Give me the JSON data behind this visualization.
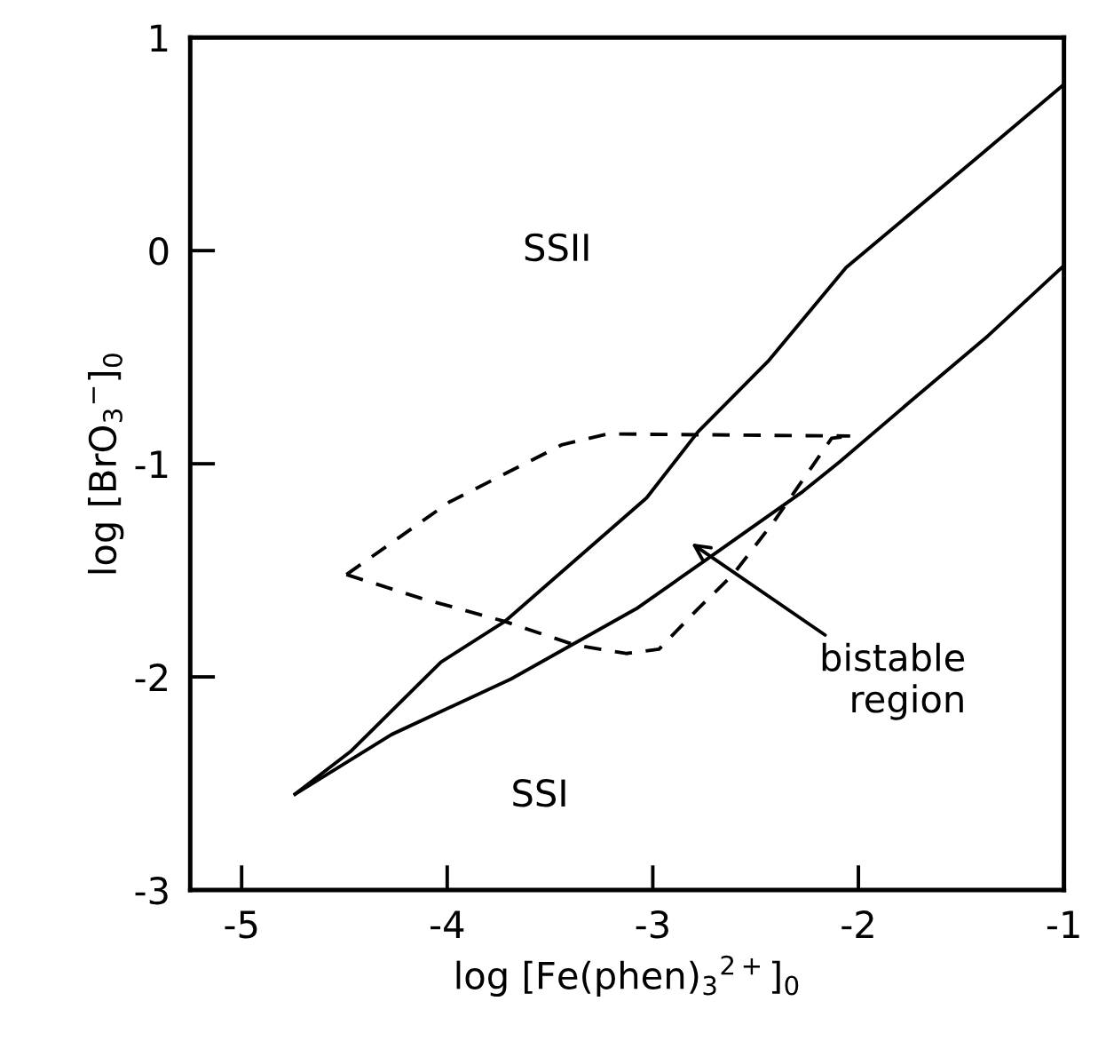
{
  "chart_data": {
    "type": "line",
    "xlabel": "log [Fe(phen)$_{3}$$^{2+}$]$_{0}$",
    "ylabel": "log [BrO$_{3}$$^{−}$]$_{0}$",
    "xlim": [
      -5.25,
      -1
    ],
    "xticks": [
      -5,
      -4,
      -3,
      -2,
      -1
    ],
    "ylim": [
      -3,
      1
    ],
    "yticks": [
      -3,
      -2,
      -1,
      0,
      1
    ],
    "grid": false,
    "legend": false,
    "marker": "none",
    "series": [
      {
        "color": "#000000",
        "line_style": "solid",
        "x": [
          -4.74,
          -4.47,
          -4.03,
          -3.72,
          -3.03,
          -2.78,
          -2.44,
          -2.06,
          -1.43,
          -1
        ],
        "values": [
          -2.55,
          -2.35,
          -1.93,
          -1.74,
          -1.16,
          -0.85,
          -0.52,
          -0.08,
          0.43,
          0.78
        ]
      },
      {
        "color": "#000000",
        "line_style": "solid",
        "x": [
          -4.74,
          -4.27,
          -3.69,
          -3.08,
          -2.74,
          -2.27,
          -2.09,
          -1.75,
          -1.37,
          -1
        ],
        "values": [
          -2.55,
          -2.27,
          -2.01,
          -1.68,
          -1.45,
          -1.13,
          -0.99,
          -0.71,
          -0.4,
          -0.07
        ]
      },
      {
        "color": "#000000",
        "line_style": "dashed",
        "x": [
          -4.49,
          -3.99,
          -3.44,
          -3.22,
          -2.04
        ],
        "values": [
          -1.52,
          -1.18,
          -0.91,
          -0.86,
          -0.87
        ]
      },
      {
        "color": "#000000",
        "line_style": "dashed",
        "x": [
          -4.49,
          -4.13,
          -3.72,
          -3.38,
          -3.13,
          -2.97,
          -2.78,
          -2.61,
          -2.41,
          -2.13,
          -2.04
        ],
        "values": [
          -1.52,
          -1.63,
          -1.74,
          -1.85,
          -1.89,
          -1.87,
          -1.68,
          -1.52,
          -1.27,
          -0.88,
          -0.87
        ]
      }
    ],
    "annotations": [
      "SSII",
      "SSI",
      "bistable\nregion"
    ]
  }
}
